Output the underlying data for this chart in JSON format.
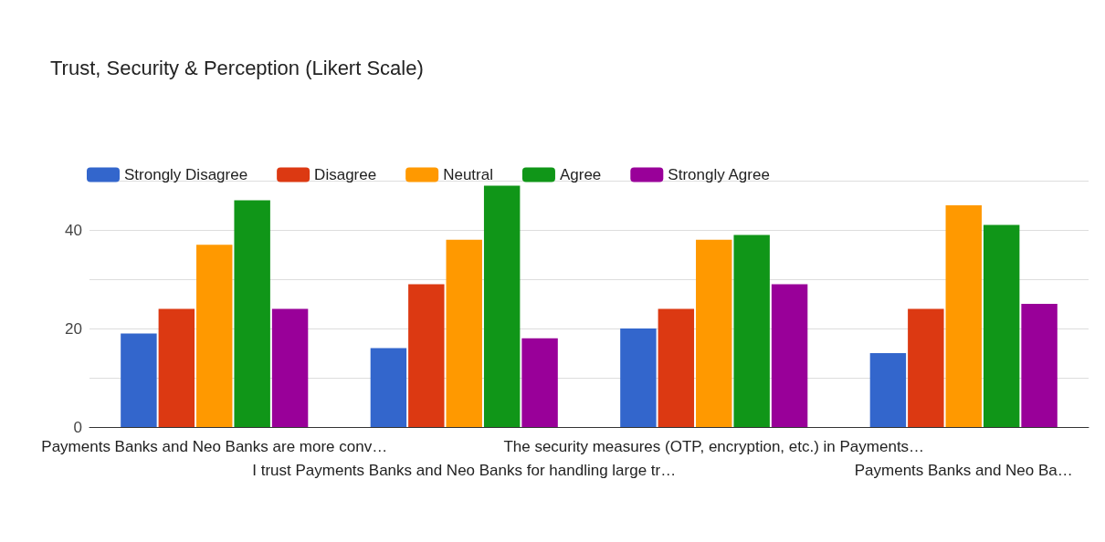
{
  "chart_data": {
    "type": "bar",
    "title": "Trust, Security & Perception (Likert Scale)",
    "categories": [
      "Payments Banks and Neo Banks are more conv…",
      "I trust Payments Banks and Neo Banks for handling large tr…",
      "The security measures (OTP, encryption, etc.) in Payments…",
      "Payments Banks and Neo Ba…"
    ],
    "series": [
      {
        "name": "Strongly Disagree",
        "color": "#3366cc",
        "values": [
          19,
          16,
          20,
          15
        ]
      },
      {
        "name": "Disagree",
        "color": "#dc3912",
        "values": [
          24,
          29,
          24,
          24
        ]
      },
      {
        "name": "Neutral",
        "color": "#ff9900",
        "values": [
          37,
          38,
          38,
          45
        ]
      },
      {
        "name": "Agree",
        "color": "#109618",
        "values": [
          46,
          49,
          39,
          41
        ]
      },
      {
        "name": "Strongly Agree",
        "color": "#990099",
        "values": [
          24,
          18,
          29,
          25
        ]
      }
    ],
    "ylim": [
      0,
      50
    ],
    "yticks": [
      0,
      {
        "value": 10,
        "label": null
      },
      20,
      {
        "value": 30,
        "label": null
      },
      40,
      {
        "value": 50,
        "label": null
      }
    ],
    "grid": "y",
    "legend": "top left"
  }
}
